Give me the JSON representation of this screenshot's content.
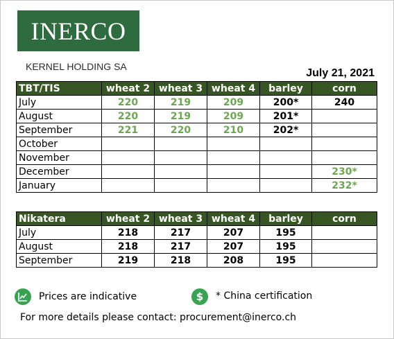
{
  "logo": {
    "text": "INERCO"
  },
  "company": "KERNEL HOLDING SA",
  "date": "July 21, 2021",
  "columns": [
    "wheat 2",
    "wheat 3",
    "wheat 4",
    "barley",
    "corn"
  ],
  "table1": {
    "title": "TBT/TIS",
    "rows": [
      {
        "month": "July",
        "cells": [
          {
            "v": "220",
            "c": "green"
          },
          {
            "v": "219",
            "c": "green"
          },
          {
            "v": "209",
            "c": "green"
          },
          {
            "v": "200*",
            "c": "black"
          },
          {
            "v": "240",
            "c": "black"
          }
        ]
      },
      {
        "month": "August",
        "cells": [
          {
            "v": "220",
            "c": "green"
          },
          {
            "v": "219",
            "c": "green"
          },
          {
            "v": "209",
            "c": "green"
          },
          {
            "v": "201*",
            "c": "black"
          },
          {
            "v": "",
            "c": "black"
          }
        ]
      },
      {
        "month": "September",
        "cells": [
          {
            "v": "221",
            "c": "green"
          },
          {
            "v": "220",
            "c": "green"
          },
          {
            "v": "210",
            "c": "green"
          },
          {
            "v": "202*",
            "c": "black"
          },
          {
            "v": "",
            "c": "black"
          }
        ]
      },
      {
        "month": "October",
        "cells": [
          {
            "v": "",
            "c": "black"
          },
          {
            "v": "",
            "c": "black"
          },
          {
            "v": "",
            "c": "black"
          },
          {
            "v": "",
            "c": "black"
          },
          {
            "v": "",
            "c": "black"
          }
        ]
      },
      {
        "month": "November",
        "cells": [
          {
            "v": "",
            "c": "black"
          },
          {
            "v": "",
            "c": "black"
          },
          {
            "v": "",
            "c": "black"
          },
          {
            "v": "",
            "c": "black"
          },
          {
            "v": "",
            "c": "black"
          }
        ]
      },
      {
        "month": "December",
        "cells": [
          {
            "v": "",
            "c": "black"
          },
          {
            "v": "",
            "c": "black"
          },
          {
            "v": "",
            "c": "black"
          },
          {
            "v": "",
            "c": "black"
          },
          {
            "v": "230*",
            "c": "green"
          }
        ]
      },
      {
        "month": "January",
        "cells": [
          {
            "v": "",
            "c": "black"
          },
          {
            "v": "",
            "c": "black"
          },
          {
            "v": "",
            "c": "black"
          },
          {
            "v": "",
            "c": "black"
          },
          {
            "v": "232*",
            "c": "green"
          }
        ]
      }
    ]
  },
  "table2": {
    "title": "Nikatera",
    "rows": [
      {
        "month": "July",
        "cells": [
          {
            "v": "218",
            "c": "black"
          },
          {
            "v": "217",
            "c": "black"
          },
          {
            "v": "207",
            "c": "black"
          },
          {
            "v": "195",
            "c": "black"
          },
          {
            "v": "",
            "c": "black"
          }
        ]
      },
      {
        "month": "August",
        "cells": [
          {
            "v": "218",
            "c": "black"
          },
          {
            "v": "217",
            "c": "black"
          },
          {
            "v": "207",
            "c": "black"
          },
          {
            "v": "195",
            "c": "black"
          },
          {
            "v": "",
            "c": "black"
          }
        ]
      },
      {
        "month": "September",
        "cells": [
          {
            "v": "219",
            "c": "black"
          },
          {
            "v": "218",
            "c": "black"
          },
          {
            "v": "208",
            "c": "black"
          },
          {
            "v": "195",
            "c": "black"
          },
          {
            "v": "",
            "c": "black"
          }
        ]
      }
    ]
  },
  "notes": {
    "indicative": {
      "icon": "chart-trend-icon",
      "text": "Prices are indicative"
    },
    "china": {
      "icon": "dollar-icon",
      "symbol": "$",
      "text": "* China certification"
    }
  },
  "contact": "For more details please contact: procurement@inerco.ch",
  "colors": {
    "header_bg": "#375623",
    "logo_bg": "#2e6b3f",
    "green_value": "#6aa84f",
    "icon_green": "#3aa353"
  }
}
